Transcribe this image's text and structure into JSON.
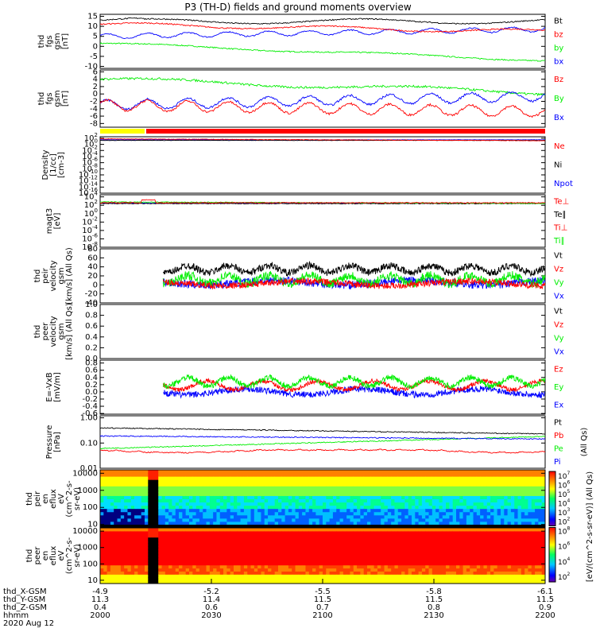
{
  "title": "P3 (TH-D) fields and ground moments overview",
  "colors": {
    "black": "#000000",
    "red": "#ff0000",
    "green": "#00ee00",
    "blue": "#0000ff",
    "yellow": "#ffff00"
  },
  "chart_data": {
    "type": "line",
    "x_axis": {
      "rows": [
        {
          "label": "thd_X-GSM",
          "values": [
            "-4.9",
            "-5.2",
            "-5.5",
            "-5.8",
            "-6.1"
          ]
        },
        {
          "label": "thd_Y-GSM",
          "values": [
            "11.3",
            "11.4",
            "11.5",
            "11.5",
            "11.5"
          ]
        },
        {
          "label": "thd_Z-GSM",
          "values": [
            "0.4",
            "0.6",
            "0.7",
            "0.8",
            "0.9"
          ]
        },
        {
          "label": "hhmm",
          "values": [
            "2000",
            "2030",
            "2100",
            "2130",
            "2200"
          ]
        }
      ],
      "date": "2020 Aug 12",
      "range_minutes": [
        0,
        120
      ]
    },
    "status_bar": {
      "yellow_until_minutes": 12
    },
    "panels": [
      {
        "id": "fgs",
        "ylabel": [
          "thd",
          "fgs",
          "gsm",
          "[nT]"
        ],
        "ticks": [
          "15",
          "10",
          "5",
          "0",
          "-5",
          "-10"
        ],
        "ylim": [
          -11,
          16
        ],
        "legend": [
          {
            "label": "Bt",
            "color": "black"
          },
          {
            "label": "bz",
            "color": "red"
          },
          {
            "label": "by",
            "color": "green"
          },
          {
            "label": "bx",
            "color": "blue"
          }
        ]
      },
      {
        "id": "fgs_gse",
        "ylabel": [
          "thd",
          "fgs",
          "gsm",
          "[nT]"
        ],
        "ticks": [
          "6",
          "4",
          "2",
          "0",
          "-2",
          "-4",
          "-6",
          "-8"
        ],
        "ylim": [
          -9,
          6.5
        ],
        "legend": [
          {
            "label": "Bz",
            "color": "red"
          },
          {
            "label": "By",
            "color": "green"
          },
          {
            "label": "Bx",
            "color": "blue"
          }
        ]
      },
      {
        "id": "density",
        "ylabel": [
          "Density",
          "[1/cc]",
          "[cm-3]"
        ],
        "ticks": [
          "10^2",
          "10^0",
          "10^-2",
          "10^-4",
          "10^-6",
          "10^-8",
          "10^-10",
          "10^-12",
          "10^-14",
          "10^-16"
        ],
        "ylim": [
          -16,
          2.5
        ],
        "legend": [
          {
            "label": "Ne",
            "color": "red"
          },
          {
            "label": "Ni",
            "color": "black"
          },
          {
            "label": "Npot",
            "color": "blue"
          }
        ]
      },
      {
        "id": "temp",
        "ylabel": [
          "magt3",
          "[eV]"
        ],
        "ticks": [
          "10^4",
          "10^2",
          "10^0",
          "10^-2",
          "10^-4",
          "10^-6",
          "10^-8"
        ],
        "ylim": [
          -8,
          4.5
        ],
        "legend": [
          {
            "label": "Te⊥",
            "color": "red"
          },
          {
            "label": "Te∥",
            "color": "black"
          },
          {
            "label": "Ti⊥",
            "color": "red"
          },
          {
            "label": "Ti∥",
            "color": "green"
          }
        ]
      },
      {
        "id": "peir_vel",
        "ylabel": [
          "thd",
          "peir",
          "velocity",
          "gsm",
          "[km/s] (All Qs)"
        ],
        "ticks": [
          "80",
          "60",
          "40",
          "20",
          "0",
          "-20",
          "-40"
        ],
        "ylim": [
          -40,
          80
        ],
        "legend": [
          {
            "label": "Vt",
            "color": "black"
          },
          {
            "label": "Vz",
            "color": "red"
          },
          {
            "label": "Vy",
            "color": "green"
          },
          {
            "label": "Vx",
            "color": "blue"
          }
        ]
      },
      {
        "id": "peer_vel",
        "ylabel": [
          "thd",
          "peer",
          "velocity",
          "gsm",
          "[km/s] (All Qs)"
        ],
        "ticks": [
          "1.0",
          "0.8",
          "0.6",
          "0.4",
          "0.2",
          "0.0"
        ],
        "ylim": [
          0,
          1
        ],
        "legend": [
          {
            "label": "Vt",
            "color": "black"
          },
          {
            "label": "Vz",
            "color": "red"
          },
          {
            "label": "Vy",
            "color": "green"
          },
          {
            "label": "Vx",
            "color": "blue"
          }
        ]
      },
      {
        "id": "efield",
        "ylabel": [
          "E=-VxB",
          "[mV/m]"
        ],
        "ticks": [
          "0.8",
          "0.6",
          "0.4",
          "0.2",
          "0.0",
          "-0.2",
          "-0.4",
          "-0.6"
        ],
        "ylim": [
          -0.62,
          0.88
        ],
        "legend": [
          {
            "label": "Ez",
            "color": "red"
          },
          {
            "label": "Ey",
            "color": "green"
          },
          {
            "label": "Ex",
            "color": "blue"
          }
        ]
      },
      {
        "id": "pressure",
        "ylabel": [
          "Pressure",
          "[nPa]"
        ],
        "ticks": [
          "1.00",
          "0.10",
          "0.01"
        ],
        "ylim": [
          -2,
          0.08
        ],
        "legend": [
          {
            "label": "Pt",
            "color": "black"
          },
          {
            "label": "Pb",
            "color": "red"
          },
          {
            "label": "Pe",
            "color": "green"
          },
          {
            "label": "Pi",
            "color": "blue"
          }
        ],
        "right_label": "(All Qs)"
      },
      {
        "id": "peir_en",
        "ylabel": [
          "thd",
          "peir",
          "en",
          "eflux",
          "eV",
          "(cm^2-s-",
          "sr-eV)"
        ],
        "ticks": [
          "10000",
          "1000",
          "100",
          "10"
        ],
        "ylim": [
          0.8,
          4.2
        ]
      },
      {
        "id": "peer_en",
        "ylabel": [
          "thd",
          "peer",
          "en",
          "eflux",
          "eV",
          "(cm^2-s-",
          "sr-eV)"
        ],
        "ticks": [
          "10000",
          "1000",
          "100",
          "10"
        ],
        "ylim": [
          0.8,
          4.2
        ]
      }
    ],
    "colorbar": {
      "ticks": [
        "10^7",
        "10^6",
        "10^5",
        "10^4",
        "10^3",
        "10^2",
        "10^8",
        "10^6",
        "10^4",
        "10^2"
      ],
      "label": "[eV/(cm^2-s-sr-eV)] (All Qs)"
    }
  }
}
